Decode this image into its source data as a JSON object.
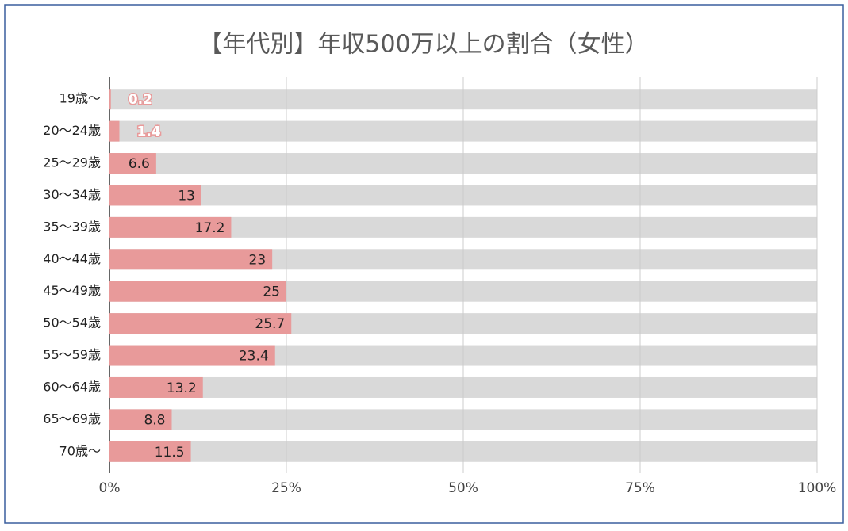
{
  "chart_data": {
    "type": "bar",
    "orientation": "horizontal",
    "title": "【年代別】年収500万以上の割合（女性）",
    "categories": [
      "19歳～",
      "20～24歳",
      "25～29歳",
      "30～34歳",
      "35～39歳",
      "40～44歳",
      "45～49歳",
      "50～54歳",
      "55～59歳",
      "60～64歳",
      "65～69歳",
      "70歳～"
    ],
    "values": [
      0.2,
      1.4,
      6.6,
      13,
      17.2,
      23,
      25,
      25.7,
      23.4,
      13.2,
      8.8,
      11.5
    ],
    "color": "#e89a9a",
    "track_color": "#d9d9d9",
    "xlim": [
      0,
      100
    ],
    "xticks": [
      {
        "value": 0,
        "label": "0%"
      },
      {
        "value": 25,
        "label": "25%"
      },
      {
        "value": 50,
        "label": "50%"
      },
      {
        "value": 75,
        "label": "75%"
      },
      {
        "value": 100,
        "label": "100%"
      }
    ],
    "grid": true
  }
}
